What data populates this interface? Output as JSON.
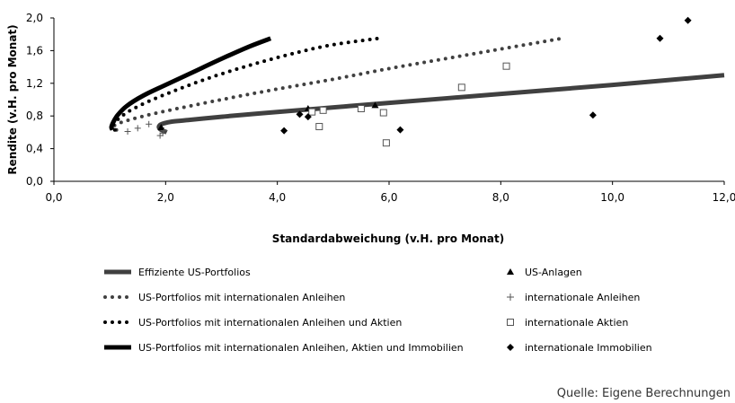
{
  "chart_data": {
    "type": "scatter",
    "xlabel": "Standardabweichung (v.H. pro Monat)",
    "ylabel": "Rendite (v.H.  pro Monat)",
    "xlim": [
      0,
      12
    ],
    "ylim": [
      0,
      2
    ],
    "x_ticks": [
      "0,0",
      "2,0",
      "4,0",
      "6,0",
      "8,0",
      "10,0",
      "12,0"
    ],
    "y_ticks": [
      "0,0",
      "0,4",
      "0,8",
      "1,2",
      "1,6",
      "2,0"
    ],
    "grid": false,
    "legend_position": "bottom",
    "lines": [
      {
        "name": "Effiziente US-Portfolios",
        "style": "solid",
        "width": 5,
        "color": "#404040",
        "x": [
          2.02,
          1.92,
          1.88,
          1.9,
          1.97,
          2.1,
          2.4,
          3.0,
          4.0,
          6.0,
          8.0,
          10.0,
          12.0
        ],
        "y": [
          0.6,
          0.63,
          0.66,
          0.69,
          0.71,
          0.73,
          0.75,
          0.79,
          0.85,
          0.96,
          1.07,
          1.18,
          1.3
        ]
      },
      {
        "name": "US-Portfolios mit internationalen Anleihen",
        "style": "dotted",
        "width": 4,
        "color": "#404040",
        "x": [
          1.12,
          1.06,
          1.08,
          1.2,
          1.5,
          2.0,
          3.0,
          4.0,
          5.0,
          6.0,
          7.0,
          8.0,
          9.1
        ],
        "y": [
          0.63,
          0.65,
          0.68,
          0.72,
          0.78,
          0.86,
          1.0,
          1.13,
          1.25,
          1.38,
          1.5,
          1.62,
          1.75
        ]
      },
      {
        "name": "US-Portfolios mit internationalen Anleihen und Aktien",
        "style": "dotted",
        "width": 4,
        "color": "#000000",
        "x": [
          1.09,
          1.04,
          1.06,
          1.15,
          1.35,
          1.7,
          2.2,
          2.8,
          3.5,
          4.2,
          4.9,
          5.8
        ],
        "y": [
          0.63,
          0.65,
          0.69,
          0.76,
          0.86,
          0.98,
          1.12,
          1.27,
          1.42,
          1.55,
          1.66,
          1.75
        ]
      },
      {
        "name": "US-Portfolios mit internationalen Anleihen, Aktien und Immobilien",
        "style": "solid",
        "width": 5,
        "color": "#000000",
        "x": [
          1.05,
          1.03,
          1.06,
          1.14,
          1.3,
          1.6,
          2.0,
          2.5,
          3.0,
          3.5,
          3.88
        ],
        "y": [
          0.63,
          0.66,
          0.72,
          0.81,
          0.92,
          1.05,
          1.18,
          1.34,
          1.5,
          1.65,
          1.75
        ]
      }
    ],
    "points": [
      {
        "name": "US-Anlagen",
        "marker": "triangle",
        "x": [
          1.92,
          4.55,
          5.75
        ],
        "y": [
          0.66,
          0.89,
          0.93
        ]
      },
      {
        "name": "internationale Anleihen",
        "marker": "plus",
        "x": [
          1.32,
          1.5,
          1.7,
          1.9,
          1.95,
          1.97
        ],
        "y": [
          0.61,
          0.65,
          0.7,
          0.56,
          0.59,
          0.62
        ]
      },
      {
        "name": "internationale Aktien",
        "marker": "square",
        "x": [
          4.62,
          4.75,
          4.82,
          5.5,
          5.9,
          5.95,
          7.3,
          8.1
        ],
        "y": [
          0.85,
          0.67,
          0.87,
          0.89,
          0.84,
          0.47,
          1.15,
          1.41
        ]
      },
      {
        "name": "internationale Immobilien",
        "marker": "diamond",
        "x": [
          4.12,
          4.4,
          4.55,
          6.2,
          9.65,
          10.85,
          11.35
        ],
        "y": [
          0.62,
          0.82,
          0.79,
          0.63,
          0.81,
          1.75,
          1.97
        ]
      }
    ]
  },
  "legend": {
    "items": [
      "Effiziente US-Portfolios",
      "US-Portfolios mit internationalen Anleihen",
      "US-Portfolios mit internationalen Anleihen und Aktien",
      "US-Portfolios mit internationalen Anleihen, Aktien und Immobilien",
      "US-Anlagen",
      "internationale Anleihen",
      "internationale Aktien",
      "internationale Immobilien"
    ]
  },
  "source": "Quelle: Eigene Berechnungen"
}
